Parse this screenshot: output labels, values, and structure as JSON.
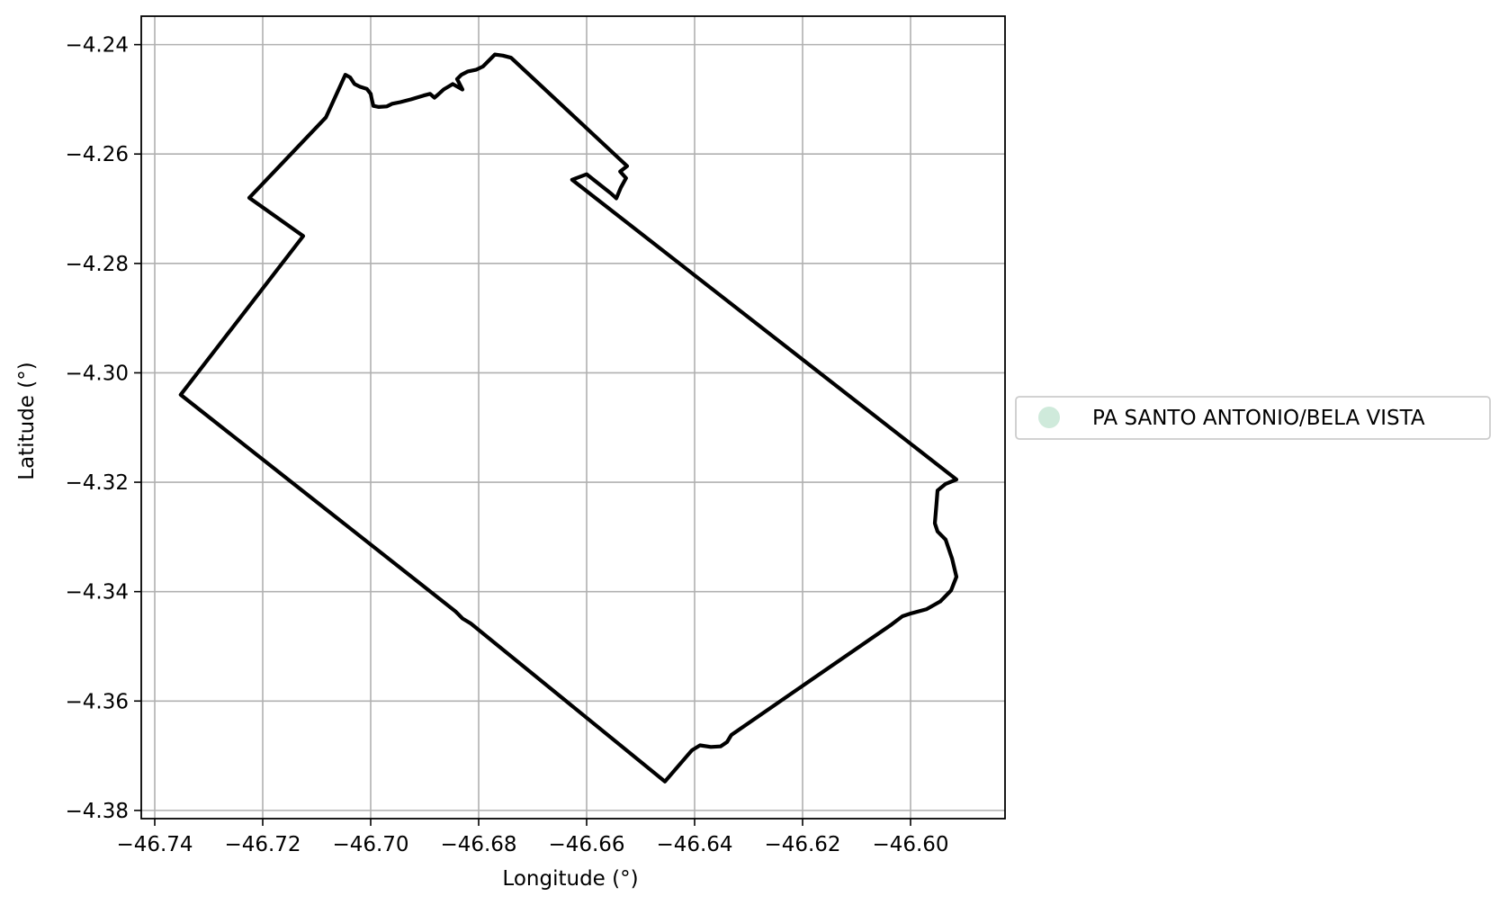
{
  "chart_data": {
    "type": "map",
    "xlabel": "Longitude (°)",
    "ylabel": "Latitude (°)",
    "xlim": [
      -46.7425,
      -46.5825
    ],
    "ylim": [
      -4.3815,
      -4.2348
    ],
    "xticks": [
      -46.74,
      -46.72,
      -46.7,
      -46.68,
      -46.66,
      -46.64,
      -46.62,
      -46.6
    ],
    "yticks": [
      -4.24,
      -4.26,
      -4.28,
      -4.3,
      -4.32,
      -4.34,
      -4.36,
      -4.38
    ],
    "xtick_labels": [
      "−46.74",
      "−46.72",
      "−46.70",
      "−46.68",
      "−46.66",
      "−46.64",
      "−46.62",
      "−46.60"
    ],
    "ytick_labels": [
      "−4.24",
      "−4.26",
      "−4.28",
      "−4.30",
      "−4.32",
      "−4.34",
      "−4.36",
      "−4.38"
    ],
    "grid": true,
    "legend": {
      "placement": "right",
      "entries": [
        {
          "label": "PA SANTO ANTONIO/BELA VISTA",
          "color": "#cfeadb"
        }
      ]
    },
    "boundary_color": "#000000",
    "boundary": [
      [
        -46.7047,
        -4.2455
      ],
      [
        -46.7038,
        -4.246
      ],
      [
        -46.703,
        -4.2472
      ],
      [
        -46.702,
        -4.2477
      ],
      [
        -46.7007,
        -4.2481
      ],
      [
        -46.7,
        -4.249
      ],
      [
        -46.6998,
        -4.25
      ],
      [
        -46.6995,
        -4.2512
      ],
      [
        -46.6985,
        -4.2514
      ],
      [
        -46.697,
        -4.2513
      ],
      [
        -46.696,
        -4.2508
      ],
      [
        -46.6945,
        -4.2505
      ],
      [
        -46.6925,
        -4.25
      ],
      [
        -46.6902,
        -4.2493
      ],
      [
        -46.689,
        -4.249
      ],
      [
        -46.6882,
        -4.2497
      ],
      [
        -46.6875,
        -4.2491
      ],
      [
        -46.6865,
        -4.2482
      ],
      [
        -46.6858,
        -4.2478
      ],
      [
        -46.6848,
        -4.2472
      ],
      [
        -46.683,
        -4.2482
      ],
      [
        -46.684,
        -4.2463
      ],
      [
        -46.6832,
        -4.2455
      ],
      [
        -46.682,
        -4.2449
      ],
      [
        -46.6805,
        -4.2446
      ],
      [
        -46.6792,
        -4.244
      ],
      [
        -46.677,
        -4.2418
      ],
      [
        -46.6755,
        -4.242
      ],
      [
        -46.674,
        -4.2424
      ],
      [
        -46.6525,
        -4.2622
      ],
      [
        -46.6538,
        -4.2632
      ],
      [
        -46.6527,
        -4.2644
      ],
      [
        -46.6537,
        -4.2662
      ],
      [
        -46.6545,
        -4.2681
      ],
      [
        -46.6555,
        -4.2672
      ],
      [
        -46.66,
        -4.2637
      ],
      [
        -46.6627,
        -4.2647
      ],
      [
        -46.5915,
        -4.3195
      ],
      [
        -46.5935,
        -4.3203
      ],
      [
        -46.595,
        -4.3215
      ],
      [
        -46.5952,
        -4.324
      ],
      [
        -46.5955,
        -4.3275
      ],
      [
        -46.595,
        -4.329
      ],
      [
        -46.5935,
        -4.3305
      ],
      [
        -46.5923,
        -4.334
      ],
      [
        -46.5915,
        -4.3373
      ],
      [
        -46.5925,
        -4.3398
      ],
      [
        -46.5945,
        -4.3418
      ],
      [
        -46.597,
        -4.3432
      ],
      [
        -46.6,
        -4.344
      ],
      [
        -46.6015,
        -4.3445
      ],
      [
        -46.6035,
        -4.346
      ],
      [
        -46.6332,
        -4.3662
      ],
      [
        -46.634,
        -4.3675
      ],
      [
        -46.6352,
        -4.3683
      ],
      [
        -46.637,
        -4.3684
      ],
      [
        -46.639,
        -4.3681
      ],
      [
        -46.6405,
        -4.369
      ],
      [
        -46.6455,
        -4.3747
      ],
      [
        -46.6815,
        -4.3458
      ],
      [
        -46.683,
        -4.3449
      ],
      [
        -46.6843,
        -4.3436
      ],
      [
        -46.7352,
        -4.304
      ],
      [
        -46.7125,
        -4.275
      ],
      [
        -46.7225,
        -4.268
      ],
      [
        -46.7083,
        -4.2533
      ],
      [
        -46.7047,
        -4.2455
      ]
    ]
  }
}
